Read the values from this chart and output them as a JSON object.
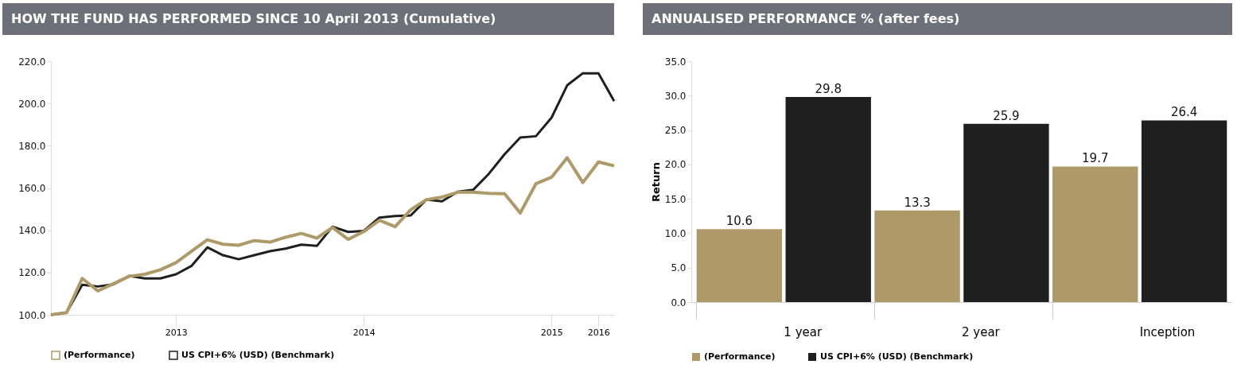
{
  "chart_data": [
    {
      "type": "line",
      "title": "HOW THE FUND HAS PERFORMED SINCE 10 April 2013 (Cumulative)",
      "categories": [
        null,
        null,
        null,
        null,
        null,
        null,
        null,
        null,
        "2013",
        null,
        null,
        null,
        null,
        null,
        null,
        null,
        null,
        null,
        null,
        null,
        "2014",
        null,
        null,
        null,
        null,
        null,
        null,
        null,
        null,
        null,
        null,
        null,
        "2015",
        null,
        null,
        "2016",
        null
      ],
      "series": [
        {
          "name": "(Performance)",
          "color": "#ad9a68",
          "values": [
            100,
            101,
            117.2,
            111.3,
            114.7,
            118.2,
            119.2,
            121.3,
            124.7,
            130.1,
            135.5,
            133.4,
            132.9,
            135.1,
            134.4,
            136.7,
            138.5,
            136.3,
            141.3,
            135.7,
            139.4,
            144.7,
            141.7,
            149.7,
            154.5,
            155.7,
            158.0,
            158.0,
            157.5,
            157.3,
            148.2,
            162.0,
            165.1,
            174.3,
            162.6,
            172.3,
            170.5
          ]
        },
        {
          "name": "US CPI+6% (USD) (Benchmark)",
          "color": "#1f1f1f",
          "values": [
            100,
            101,
            114.2,
            113.4,
            114.4,
            118.4,
            117.2,
            117.2,
            119.2,
            123.2,
            131.9,
            128.2,
            126.3,
            128.2,
            130.1,
            131.3,
            133.2,
            132.6,
            141.7,
            139.2,
            139.7,
            146.0,
            146.7,
            147.0,
            154.5,
            153.7,
            158.2,
            159.2,
            166.8,
            176.0,
            183.9,
            184.5,
            193.3,
            208.6,
            214.3,
            214.3,
            201.1
          ]
        }
      ],
      "ylim": [
        100,
        220
      ],
      "yticks": [
        {
          "value": 100,
          "label": "100.0"
        },
        {
          "value": 120,
          "label": "120.0"
        },
        {
          "value": 140,
          "label": "140.0"
        },
        {
          "value": 160,
          "label": "160.0"
        },
        {
          "value": 180,
          "label": "180.0"
        },
        {
          "value": 200,
          "label": "200.0"
        },
        {
          "value": 220,
          "label": "220.0"
        }
      ],
      "legend": "bottom",
      "grid": false
    },
    {
      "type": "bar",
      "title": "ANNUALISED PERFORMANCE % (after fees)",
      "ylabel": "Return",
      "categories": [
        "1 year",
        "2 year",
        "Inception"
      ],
      "series": [
        {
          "name": "(Performance)",
          "color": "#ad9a68",
          "values": [
            10.6,
            13.3,
            19.7
          ]
        },
        {
          "name": "US CPI+6% (USD) (Benchmark)",
          "color": "#1f1f1f",
          "values": [
            29.8,
            25.9,
            26.4
          ]
        }
      ],
      "ylim": [
        0,
        35
      ],
      "yticks": [
        {
          "value": 0,
          "label": "0.0"
        },
        {
          "value": 5,
          "label": "5.0"
        },
        {
          "value": 10,
          "label": "10.0"
        },
        {
          "value": 15,
          "label": "15.0"
        },
        {
          "value": 20,
          "label": "20.0"
        },
        {
          "value": 25,
          "label": "25.0"
        },
        {
          "value": 30,
          "label": "30.0"
        },
        {
          "value": 35,
          "label": "35.0"
        }
      ],
      "data_labels": true,
      "legend": "bottom",
      "grid": false
    }
  ]
}
